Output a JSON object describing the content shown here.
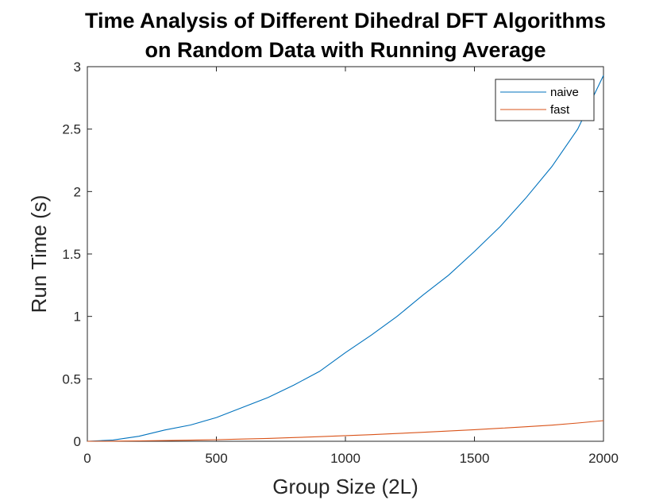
{
  "chart_data": {
    "type": "line",
    "title": "Time Analysis of Different Dihedral DFT Algorithms",
    "subtitle": "on Random Data with Running Average",
    "xlabel": "Group Size (2L)",
    "ylabel": "Run Time (s)",
    "xlim": [
      0,
      2000
    ],
    "ylim": [
      0,
      3
    ],
    "xticks": [
      0,
      500,
      1000,
      1500,
      2000
    ],
    "xtick_labels": [
      "0",
      "500",
      "1000",
      "1500",
      "2000"
    ],
    "yticks": [
      0,
      0.5,
      1,
      1.5,
      2,
      2.5,
      3
    ],
    "ytick_labels": [
      "0",
      "0.5",
      "1",
      "1.5",
      "2",
      "2.5",
      "3"
    ],
    "grid": false,
    "legend": "top-right",
    "series": [
      {
        "name": "naive",
        "color": "#0072BD",
        "x": [
          0,
          100,
          200,
          300,
          400,
          500,
          600,
          700,
          800,
          900,
          1000,
          1100,
          1200,
          1300,
          1400,
          1500,
          1600,
          1700,
          1800,
          1900,
          2000
        ],
        "y": [
          0,
          0.01,
          0.04,
          0.09,
          0.13,
          0.19,
          0.27,
          0.35,
          0.45,
          0.56,
          0.71,
          0.85,
          1.0,
          1.17,
          1.33,
          1.52,
          1.72,
          1.95,
          2.2,
          2.5,
          2.93
        ]
      },
      {
        "name": "fast",
        "color": "#D95319",
        "x": [
          0,
          100,
          200,
          300,
          400,
          500,
          600,
          700,
          800,
          900,
          1000,
          1100,
          1200,
          1300,
          1400,
          1500,
          1600,
          1700,
          1800,
          1900,
          2000
        ],
        "y": [
          0,
          0.001,
          0.003,
          0.006,
          0.009,
          0.013,
          0.018,
          0.023,
          0.03,
          0.037,
          0.045,
          0.053,
          0.062,
          0.072,
          0.082,
          0.093,
          0.104,
          0.116,
          0.129,
          0.146,
          0.165
        ]
      }
    ]
  }
}
